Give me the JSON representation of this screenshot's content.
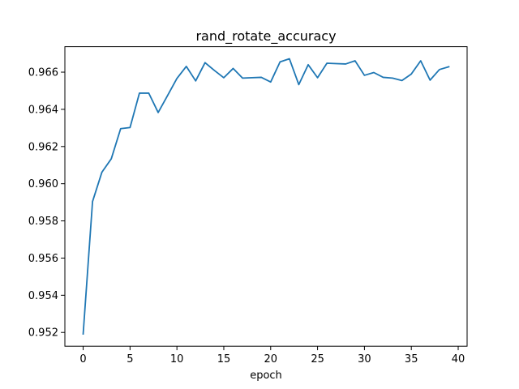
{
  "chart_data": {
    "type": "line",
    "title": "rand_rotate_accuracy",
    "xlabel": "epoch",
    "ylabel": "",
    "xlim": [
      -1.95,
      40.95
    ],
    "ylim": [
      0.95126,
      0.96737
    ],
    "xticks": [
      0,
      5,
      10,
      15,
      20,
      25,
      30,
      35,
      40
    ],
    "yticks": [
      0.952,
      0.954,
      0.956,
      0.958,
      0.96,
      0.962,
      0.964,
      0.966
    ],
    "ytick_labels": [
      "0.952",
      "0.954",
      "0.956",
      "0.958",
      "0.960",
      "0.962",
      "0.964",
      "0.966"
    ],
    "grid": false,
    "colors": {
      "line": "#1f77b4",
      "axes": "#000000",
      "background": "#ffffff"
    },
    "series": [
      {
        "x": [
          0,
          1,
          2,
          3,
          4,
          5,
          6,
          7,
          8,
          9,
          10,
          11,
          12,
          13,
          14,
          15,
          16,
          17,
          18,
          19,
          20,
          21,
          22,
          23,
          24,
          25,
          26,
          27,
          28,
          29,
          30,
          31,
          32,
          33,
          34,
          35,
          36,
          37,
          38,
          39
        ],
        "values": [
          0.95192,
          0.95904,
          0.96062,
          0.96134,
          0.96296,
          0.96302,
          0.96487,
          0.96487,
          0.96383,
          0.96474,
          0.96566,
          0.96631,
          0.96553,
          0.96651,
          0.96609,
          0.9657,
          0.9662,
          0.96568,
          0.9657,
          0.96572,
          0.96547,
          0.96655,
          0.96672,
          0.96533,
          0.9664,
          0.9657,
          0.96648,
          0.96646,
          0.96644,
          0.96661,
          0.96583,
          0.96598,
          0.96572,
          0.96568,
          0.96555,
          0.9659,
          0.96661,
          0.96557,
          0.96614,
          0.96629
        ]
      }
    ]
  }
}
